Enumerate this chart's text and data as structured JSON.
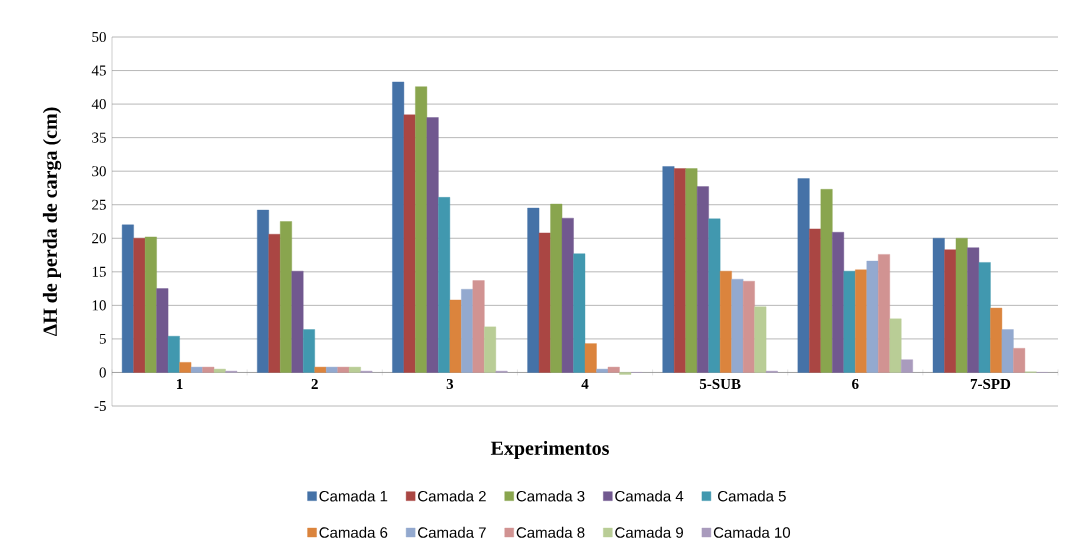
{
  "chart_data": {
    "type": "bar",
    "xlabel": "Experimentos",
    "ylabel": "ΔH de perda de carga (cm)",
    "categories": [
      "1",
      "2",
      "3",
      "4",
      "5-SUB",
      "6",
      "7-SPD"
    ],
    "series": [
      {
        "name": "Camada 1",
        "color": "#4572a7",
        "values": [
          22,
          24.2,
          43.3,
          24.5,
          30.7,
          28.9,
          20
        ]
      },
      {
        "name": "Camada 2",
        "color": "#aa4643",
        "values": [
          20,
          20.6,
          38.4,
          20.8,
          30.4,
          21.4,
          18.3
        ]
      },
      {
        "name": "Camada 3",
        "color": "#89a54e",
        "values": [
          20.2,
          22.5,
          42.6,
          25.1,
          30.4,
          27.3,
          20
        ]
      },
      {
        "name": "Camada 4",
        "color": "#71588f",
        "values": [
          12.5,
          15.1,
          38,
          23,
          27.7,
          20.9,
          18.6
        ]
      },
      {
        "name": "Camada 5",
        "color": "#4198af",
        "values": [
          5.4,
          6.4,
          26.1,
          17.7,
          22.9,
          15.1,
          16.4
        ]
      },
      {
        "name": "Camada 6",
        "color": "#db843d",
        "values": [
          1.5,
          0.8,
          10.8,
          4.3,
          15.1,
          15.3,
          9.6
        ]
      },
      {
        "name": "Camada 7",
        "color": "#93a9cf",
        "values": [
          0.8,
          0.8,
          12.4,
          0.5,
          13.9,
          16.6,
          6.4
        ]
      },
      {
        "name": "Camada 8",
        "color": "#d19392",
        "values": [
          0.8,
          0.8,
          13.7,
          0.8,
          13.6,
          17.6,
          3.6
        ]
      },
      {
        "name": "Camada 9",
        "color": "#b9cd96",
        "values": [
          0.5,
          0.8,
          6.8,
          -0.3,
          9.8,
          8,
          0.1
        ]
      },
      {
        "name": "Camada 10",
        "color": "#a99bbd",
        "values": [
          0.2,
          0.2,
          0.2,
          0,
          0.2,
          1.9,
          0
        ]
      }
    ],
    "ylim": [
      -5,
      50
    ],
    "yticks": [
      -5,
      0,
      5,
      10,
      15,
      20,
      25,
      30,
      35,
      40,
      45,
      50
    ],
    "grid": "y",
    "legend": "bottom"
  }
}
